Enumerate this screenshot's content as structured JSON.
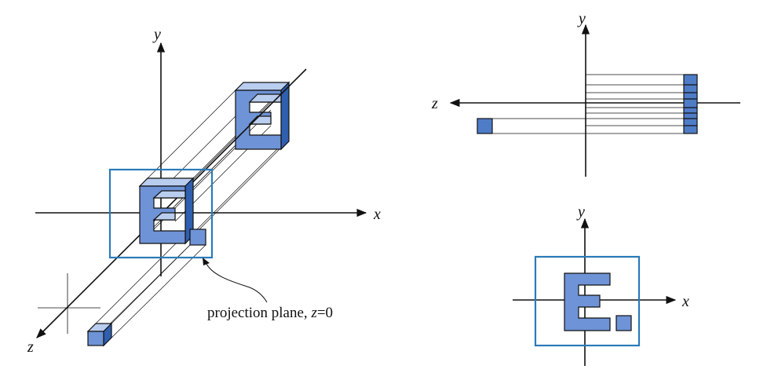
{
  "labels": {
    "left_x": "x",
    "left_y": "y",
    "left_z": "z",
    "top_right_y": "y",
    "top_right_z": "z",
    "bottom_right_y": "y",
    "bottom_right_x": "x"
  },
  "caption": {
    "prefix": "projection plane, ",
    "variable": "z",
    "suffix": "=0"
  },
  "colors": {
    "face": "#6e93d6",
    "face_dark": "#2f5fae",
    "face_light": "#b9cdef",
    "plane": "#2a7ab8",
    "ink": "#111111"
  }
}
